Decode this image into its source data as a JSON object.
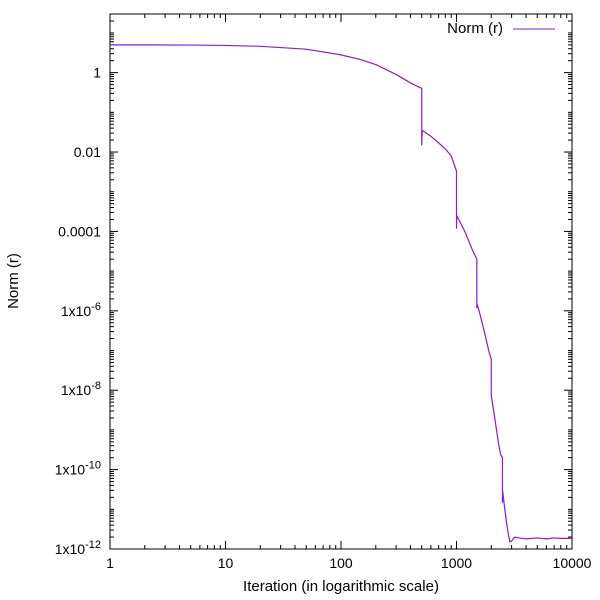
{
  "chart_data": {
    "type": "line",
    "title": "",
    "xlabel": "Iteration (in logarithmic scale)",
    "ylabel": "Norm (r)",
    "x_scale": "log",
    "y_scale": "log",
    "xlim": [
      1,
      10000
    ],
    "ylim": [
      1e-12,
      30
    ],
    "grid": false,
    "legend_position": "top-right",
    "x_ticks": [
      {
        "value": 1,
        "label": "1"
      },
      {
        "value": 10,
        "label": "10"
      },
      {
        "value": 100,
        "label": "100"
      },
      {
        "value": 1000,
        "label": "1000"
      },
      {
        "value": 10000,
        "label": "10000"
      }
    ],
    "y_ticks": [
      {
        "value": 1e-12,
        "label": "1x10",
        "exp": "-12"
      },
      {
        "value": 1e-10,
        "label": "1x10",
        "exp": "-10"
      },
      {
        "value": 1e-08,
        "label": "1x10",
        "exp": "-8"
      },
      {
        "value": 1e-06,
        "label": "1x10",
        "exp": "-6"
      },
      {
        "value": 0.0001,
        "label": "0.0001",
        "exp": ""
      },
      {
        "value": 0.01,
        "label": "0.01",
        "exp": ""
      },
      {
        "value": 1,
        "label": "1",
        "exp": ""
      }
    ],
    "series": [
      {
        "name": "Norm (r)",
        "color": "#8a1cc8",
        "x": [
          1,
          2,
          5,
          10,
          20,
          50,
          100,
          150,
          200,
          300,
          400,
          500,
          500,
          505,
          600,
          700,
          800,
          900,
          1000,
          1000,
          1005,
          1100,
          1200,
          1300,
          1400,
          1500,
          1500,
          1505,
          1600,
          1700,
          1800,
          1900,
          2000,
          2000,
          2005,
          2100,
          2200,
          2300,
          2400,
          2500,
          2500,
          2505,
          2600,
          2700,
          2800,
          2900,
          3000,
          3100,
          3200,
          3500,
          4000,
          5000,
          6000,
          7000,
          8000,
          10000
        ],
        "y": [
          5.0,
          5.0,
          4.95,
          4.85,
          4.6,
          3.9,
          2.8,
          2.1,
          1.6,
          0.9,
          0.55,
          0.4,
          0.015,
          0.035,
          0.025,
          0.017,
          0.012,
          0.008,
          0.0033,
          0.00012,
          0.00025,
          0.00015,
          9e-05,
          5e-05,
          3e-05,
          2e-05,
          1.2e-06,
          1.5e-06,
          8e-07,
          4e-07,
          2e-07,
          1e-07,
          6e-08,
          9e-09,
          7e-09,
          3e-09,
          1.2e-09,
          5e-10,
          2.5e-10,
          2e-10,
          1.5e-11,
          3e-11,
          1.2e-11,
          5e-12,
          2.5e-12,
          1.5e-12,
          1.6e-12,
          1.8e-12,
          2e-12,
          1.9e-12,
          1.8e-12,
          1.9e-12,
          1.8e-12,
          1.9e-12,
          1.85e-12,
          1.85e-12
        ]
      }
    ]
  }
}
